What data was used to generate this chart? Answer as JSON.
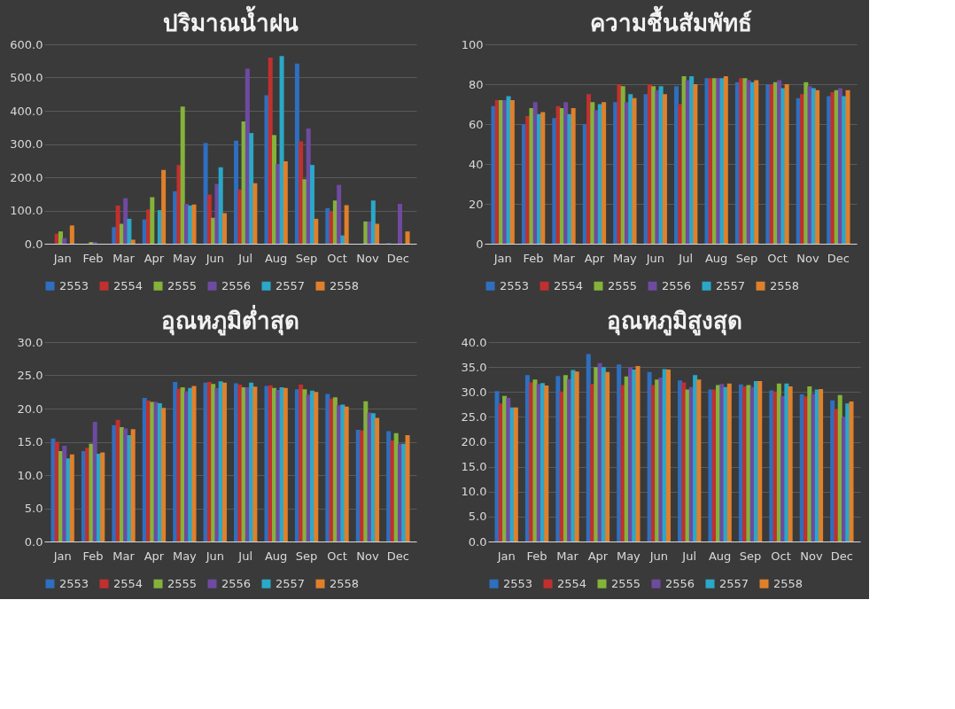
{
  "chart_data": [
    {
      "type": "bar",
      "title": "ปริมาณน้ำฝน",
      "categories": [
        "Jan",
        "Feb",
        "Mar",
        "Apr",
        "May",
        "Jun",
        "Jul",
        "Aug",
        "Sep",
        "Oct",
        "Nov",
        "Dec"
      ],
      "series": [
        {
          "name": "2553",
          "color": "#2e6fc0",
          "values": [
            0,
            0,
            50,
            73,
            158,
            303,
            310,
            447,
            542,
            107,
            0,
            2
          ]
        },
        {
          "name": "2554",
          "color": "#c0302e",
          "values": [
            30,
            0,
            115,
            103,
            237,
            148,
            163,
            560,
            308,
            98,
            0,
            0
          ]
        },
        {
          "name": "2555",
          "color": "#84b33a",
          "values": [
            37,
            5,
            60,
            140,
            413,
            78,
            368,
            327,
            194,
            130,
            67,
            0
          ]
        },
        {
          "name": "2556",
          "color": "#6e4aa0",
          "values": [
            17,
            5,
            137,
            0,
            120,
            180,
            527,
            240,
            347,
            177,
            67,
            120
          ]
        },
        {
          "name": "2557",
          "color": "#2aa8c8",
          "values": [
            0,
            0,
            75,
            101,
            115,
            230,
            333,
            565,
            237,
            25,
            130,
            0
          ]
        },
        {
          "name": "2558",
          "color": "#e0802a",
          "values": [
            55,
            0,
            12,
            222,
            118,
            92,
            182,
            248,
            75,
            116,
            60,
            37
          ]
        }
      ],
      "ylim": [
        0,
        600
      ],
      "yticks": [
        {
          "value": 0,
          "label": "0.0"
        },
        {
          "value": 100,
          "label": "100.0"
        },
        {
          "value": 200,
          "label": "200.0"
        },
        {
          "value": 300,
          "label": "300.0"
        },
        {
          "value": 400,
          "label": "400.0"
        },
        {
          "value": 500,
          "label": "500.0"
        },
        {
          "value": 600,
          "label": "600.0"
        }
      ],
      "grid": "y",
      "legend": "bottom"
    },
    {
      "type": "bar",
      "title": "ความชื้นสัมพัทธ์",
      "categories": [
        "Jan",
        "Feb",
        "Mar",
        "Apr",
        "May",
        "Jun",
        "Jul",
        "Aug",
        "Sep",
        "Oct",
        "Nov",
        "Dec"
      ],
      "series": [
        {
          "name": "2553",
          "color": "#2e6fc0",
          "values": [
            69,
            60,
            63,
            60,
            71,
            75,
            79,
            83,
            81,
            80,
            73,
            74
          ]
        },
        {
          "name": "2554",
          "color": "#c0302e",
          "values": [
            72,
            64,
            69,
            75,
            80,
            80,
            70,
            83,
            83,
            80,
            75,
            76
          ]
        },
        {
          "name": "2555",
          "color": "#84b33a",
          "values": [
            72,
            68,
            68,
            71,
            79,
            79,
            84,
            83,
            83,
            81,
            81,
            77
          ]
        },
        {
          "name": "2556",
          "color": "#6e4aa0",
          "values": [
            72,
            71,
            71,
            67,
            71,
            77,
            82,
            83,
            82,
            82,
            79,
            78
          ]
        },
        {
          "name": "2557",
          "color": "#2aa8c8",
          "values": [
            74,
            65,
            65,
            70,
            75,
            79,
            84,
            83,
            81,
            78,
            78,
            74
          ]
        },
        {
          "name": "2558",
          "color": "#e0802a",
          "values": [
            72,
            66,
            68,
            71,
            73,
            75,
            80,
            84,
            82,
            80,
            77,
            77
          ]
        }
      ],
      "ylim": [
        0,
        100
      ],
      "yticks": [
        0,
        20,
        40,
        60,
        80,
        100
      ],
      "grid": "y",
      "legend": "bottom"
    },
    {
      "type": "bar",
      "title": "อุณหภูมิต่ำสุด",
      "categories": [
        "Jan",
        "Feb",
        "Mar",
        "Apr",
        "May",
        "Jun",
        "Jul",
        "Aug",
        "Sep",
        "Oct",
        "Nov",
        "Dec"
      ],
      "series": [
        {
          "name": "2553",
          "color": "#2e6fc0",
          "values": [
            15.5,
            13.6,
            17.5,
            21.6,
            24.0,
            23.9,
            23.8,
            23.4,
            22.9,
            22.2,
            16.8,
            16.6
          ]
        },
        {
          "name": "2554",
          "color": "#c0302e",
          "values": [
            15.0,
            14.1,
            18.3,
            21.2,
            23.0,
            24.0,
            23.6,
            23.5,
            23.6,
            21.5,
            16.7,
            15.2
          ]
        },
        {
          "name": "2555",
          "color": "#84b33a",
          "values": [
            13.6,
            14.7,
            17.2,
            21.0,
            23.2,
            23.7,
            23.2,
            23.1,
            22.9,
            21.7,
            21.1,
            16.3
          ]
        },
        {
          "name": "2556",
          "color": "#6e4aa0",
          "values": [
            14.4,
            18.0,
            17.0,
            21.0,
            22.6,
            23.1,
            23.2,
            22.8,
            22.1,
            20.5,
            19.4,
            14.7
          ]
        },
        {
          "name": "2557",
          "color": "#2aa8c8",
          "values": [
            12.5,
            13.2,
            16.0,
            20.8,
            23.1,
            24.1,
            23.9,
            23.2,
            22.7,
            20.6,
            19.3,
            14.7
          ]
        },
        {
          "name": "2558",
          "color": "#e0802a",
          "values": [
            13.1,
            13.4,
            16.9,
            20.1,
            23.4,
            23.9,
            23.3,
            23.1,
            22.5,
            20.3,
            18.6,
            16.0
          ]
        }
      ],
      "ylim": [
        0,
        30
      ],
      "yticks": [
        {
          "value": 0,
          "label": "0.0"
        },
        {
          "value": 5,
          "label": "5.0"
        },
        {
          "value": 10,
          "label": "10.0"
        },
        {
          "value": 15,
          "label": "15.0"
        },
        {
          "value": 20,
          "label": "20.0"
        },
        {
          "value": 25,
          "label": "25.0"
        },
        {
          "value": 30,
          "label": "30.0"
        }
      ],
      "grid": "y",
      "legend": "bottom"
    },
    {
      "type": "bar",
      "title": "อุณหภูมิสูงสุด",
      "categories": [
        "Jan",
        "Feb",
        "Mar",
        "Apr",
        "May",
        "Jun",
        "Jul",
        "Aug",
        "Sep",
        "Oct",
        "Nov",
        "Dec"
      ],
      "series": [
        {
          "name": "2553",
          "color": "#2e6fc0",
          "values": [
            30.2,
            33.4,
            33.2,
            37.6,
            35.5,
            34.0,
            32.3,
            30.5,
            31.5,
            30.3,
            29.5,
            28.3
          ]
        },
        {
          "name": "2554",
          "color": "#c0302e",
          "values": [
            27.7,
            31.9,
            30.1,
            31.6,
            31.4,
            31.4,
            31.9,
            30.5,
            31.1,
            30.1,
            29.1,
            26.6
          ]
        },
        {
          "name": "2555",
          "color": "#84b33a",
          "values": [
            29.2,
            32.5,
            33.4,
            35.0,
            33.1,
            32.5,
            30.5,
            31.4,
            31.4,
            31.7,
            31.1,
            29.4
          ]
        },
        {
          "name": "2556",
          "color": "#6e4aa0",
          "values": [
            28.8,
            31.6,
            32.6,
            35.8,
            35.0,
            32.9,
            31.0,
            31.6,
            31.0,
            29.2,
            29.6,
            24.9
          ]
        },
        {
          "name": "2557",
          "color": "#2aa8c8",
          "values": [
            26.9,
            31.8,
            34.4,
            35.0,
            34.5,
            34.6,
            33.4,
            31.0,
            32.2,
            31.7,
            30.5,
            27.7
          ]
        },
        {
          "name": "2558",
          "color": "#e0802a",
          "values": [
            26.9,
            31.3,
            34.1,
            34.0,
            35.2,
            34.5,
            32.5,
            31.7,
            32.2,
            31.1,
            30.6,
            28.1
          ]
        }
      ],
      "ylim": [
        0,
        40
      ],
      "yticks": [
        {
          "value": 0,
          "label": "0.0"
        },
        {
          "value": 5,
          "label": "5.0"
        },
        {
          "value": 10,
          "label": "10.0"
        },
        {
          "value": 15,
          "label": "15.0"
        },
        {
          "value": 20,
          "label": "20.0"
        },
        {
          "value": 25,
          "label": "25.0"
        },
        {
          "value": 30,
          "label": "30.0"
        },
        {
          "value": 35,
          "label": "35.0"
        },
        {
          "value": 40,
          "label": "40.0"
        }
      ],
      "grid": "y",
      "legend": "bottom"
    }
  ]
}
